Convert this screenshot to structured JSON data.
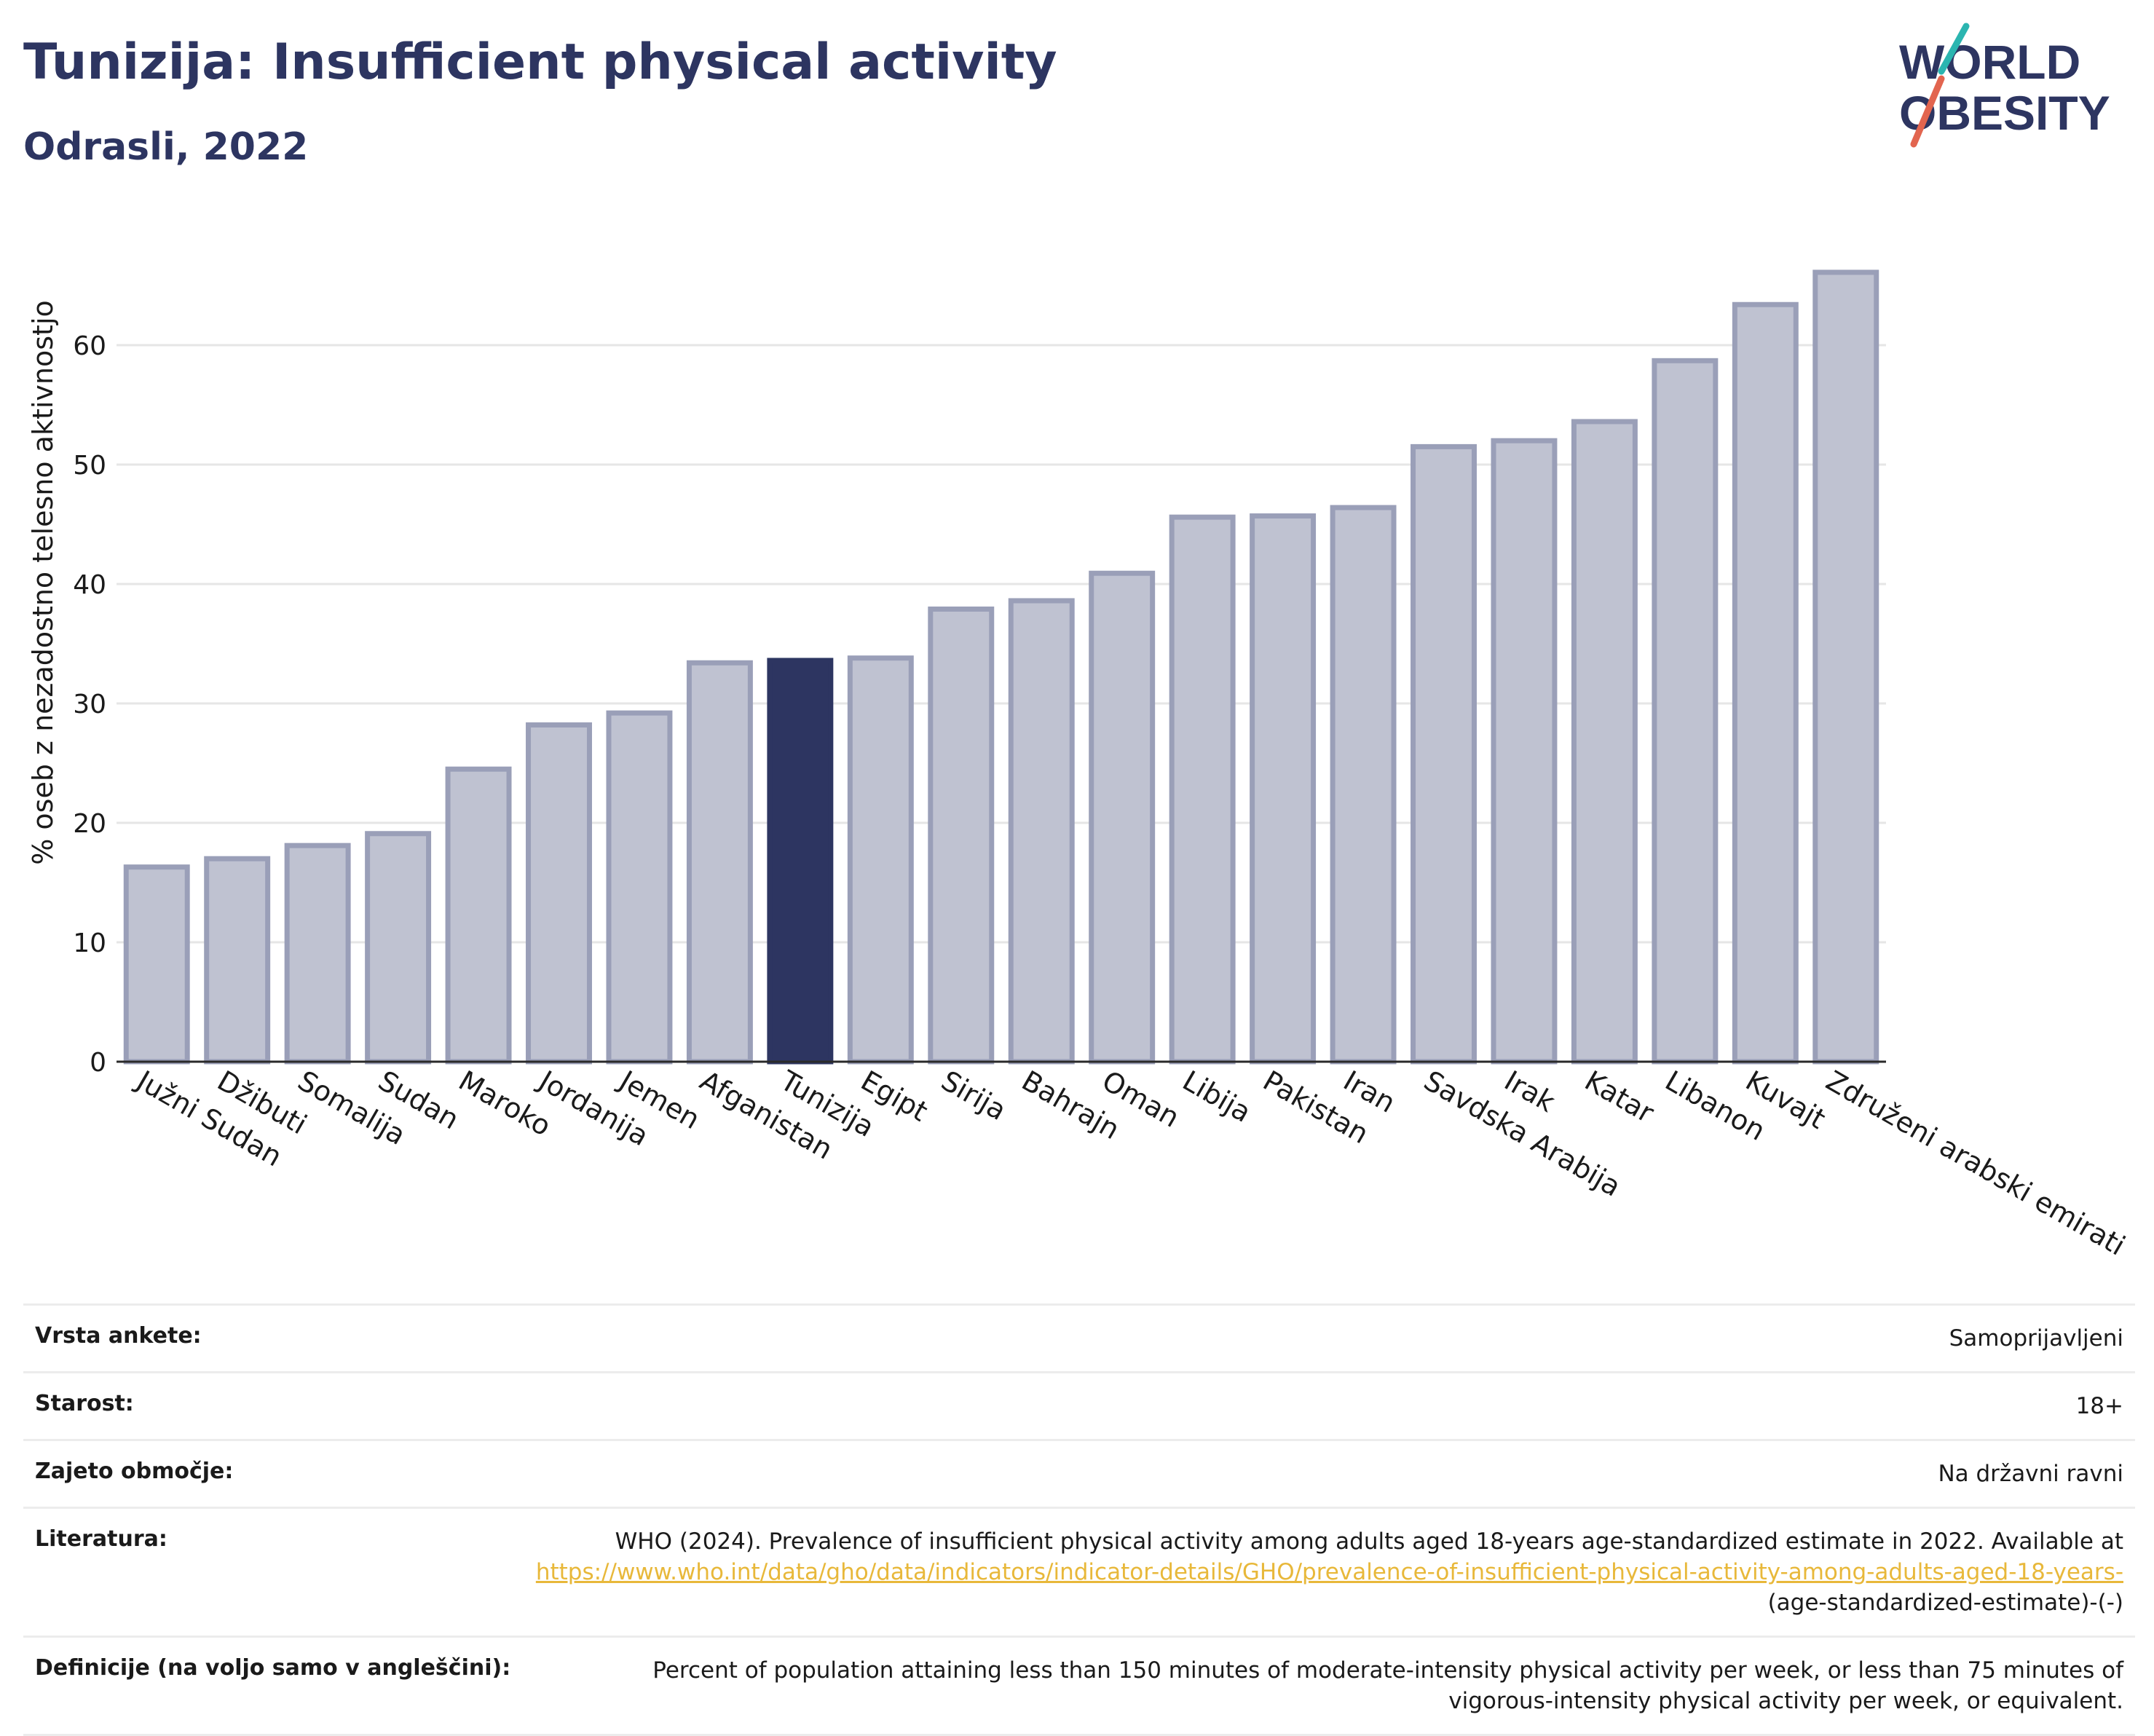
{
  "header": {
    "title": "Tunizija: Insufficient physical activity",
    "subtitle": "Odrasli, 2022"
  },
  "logo": {
    "line1": "WORLD",
    "line2": "OBESITY"
  },
  "colors": {
    "highlight": "#2d3561",
    "bar": "#bfc2d1",
    "bar_stroke": "#9a9fb8",
    "accent_link": "#e8b83a"
  },
  "chart_data": {
    "type": "bar",
    "title": "Tunizija: Insufficient physical activity",
    "subtitle": "Odrasli, 2022",
    "xlabel": "",
    "ylabel": "% oseb z nezadostno telesno aktivnostjo",
    "ylim": [
      0,
      70
    ],
    "yticks": [
      0,
      10,
      20,
      30,
      40,
      50,
      60
    ],
    "grid": true,
    "highlight": "Tunizija",
    "categories": [
      "Južni Sudan",
      "Džibuti",
      "Somalija",
      "Sudan",
      "Maroko",
      "Jordanija",
      "Jemen",
      "Afganistan",
      "Tunizija",
      "Egipt",
      "Sirija",
      "Bahrajn",
      "Oman",
      "Libija",
      "Pakistan",
      "Iran",
      "Savdska Arabija",
      "Irak",
      "Katar",
      "Libanon",
      "Kuvajt",
      "Združeni arabski emirati"
    ],
    "values": [
      16.3,
      17.0,
      18.1,
      19.1,
      24.5,
      28.2,
      29.2,
      33.4,
      33.6,
      33.8,
      37.9,
      38.6,
      40.9,
      45.6,
      45.7,
      46.4,
      51.5,
      52.0,
      53.6,
      58.7,
      63.4,
      66.1
    ]
  },
  "meta": {
    "rows": [
      {
        "label": "Vrsta ankete:",
        "value": "Samoprijavljeni"
      },
      {
        "label": "Starost:",
        "value": "18+"
      },
      {
        "label": "Zajeto območje:",
        "value": "Na državni ravni"
      },
      {
        "label": "Literatura:",
        "value_pre": "WHO (2024). Prevalence of insufficient physical activity among adults aged 18-years age-standardized estimate in 2022. Available at",
        "link": "https://www.who.int/data/gho/data/indicators/indicator-details/GHO/prevalence-of-insufficient-physical-activity-among-adults-aged-18-years-",
        "value_post": "(age-standardized-estimate)-(-)"
      },
      {
        "label": "Definicije (na voljo samo v angleščini):",
        "value": "Percent of population attaining less than 150 minutes of moderate-intensity physical activity per week, or less than 75 minutes of vigorous-intensity physical activity per week, or equivalent."
      }
    ]
  }
}
